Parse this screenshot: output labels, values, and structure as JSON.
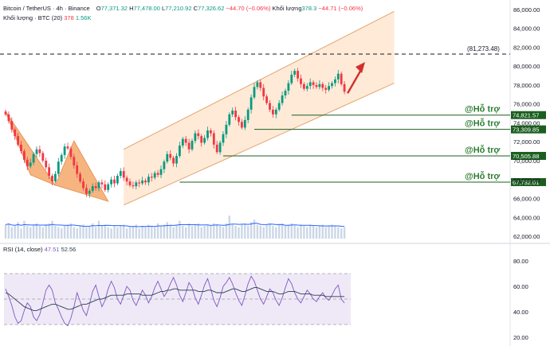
{
  "header": {
    "symbol": "Bitcoin / TetherUS · 4h · Binance",
    "open_label": "O",
    "open_value": "77,371.32",
    "high_label": "H",
    "high_value": "77,478.00",
    "low_label": "L",
    "low_value": "77,210.92",
    "close_label": "C",
    "close_value": "77,326.62",
    "change": "−44.70 (−0.06%)",
    "volume_label": "Khối lượng",
    "volume_value": "378.3",
    "volume_change": "−44.71 (−0.06%)",
    "volume_indicator_label": "Khối lượng · BTC (20)",
    "volume_indicator_value1": "378",
    "volume_indicator_value2": "1.56K"
  },
  "rsi_header": {
    "label": "RSI (14, close)",
    "value1": "47.51",
    "value2": "52.56"
  },
  "colors": {
    "up": "#089981",
    "down": "#f23645",
    "channel_fill": "#fde3c9",
    "channel_line": "#e2a46c",
    "pattern_fill": "#f5a86a",
    "support_line": "#1b5e20",
    "support_text": "#2e7d32",
    "rsi_band": "#ede7f6",
    "rsi_line": "#7e57c2",
    "rsi_ma": "#2c3e50",
    "arrow": "#d32f2f"
  },
  "chart_data": {
    "type": "candlestick",
    "price_axis": {
      "ylim": [
        61500,
        87000
      ],
      "ticks": [
        "86,000.00",
        "84,000.00",
        "82,000.00",
        "80,000.00",
        "78,000.00",
        "76,000.00",
        "74,000.00",
        "72,000.00",
        "70,000.00",
        "68,000.00",
        "66,000.00",
        "64,000.00",
        "62,000.00"
      ],
      "tick_values": [
        86000,
        84000,
        82000,
        80000,
        78000,
        76000,
        74000,
        72000,
        70000,
        68000,
        66000,
        64000,
        62000
      ]
    },
    "target_level": {
      "value": 81273.48,
      "label": "(81,273.48)"
    },
    "supports": [
      {
        "value": 74821.57,
        "label": "74,821.57",
        "text": "@Hỗ trợ",
        "from_bar": 92
      },
      {
        "value": 73309.85,
        "label": "73,309.85",
        "text": "@Hỗ trợ",
        "from_bar": 80
      },
      {
        "value": 70505.88,
        "label": "70,505.88",
        "text": "@Hỗ trợ",
        "from_bar": 70
      },
      {
        "value": 67732.01,
        "label": "67,732.01",
        "text": "@Hỗ trợ",
        "from_bar": 56
      }
    ],
    "channel": {
      "lower": [
        [
          38,
          65300
        ],
        [
          125,
          78200
        ]
      ],
      "upper": [
        [
          38,
          71200
        ],
        [
          125,
          85800
        ]
      ]
    },
    "harmonic_pattern": [
      [
        0,
        75200
      ],
      [
        8,
        68500
      ],
      [
        16,
        67400
      ],
      [
        22,
        72100
      ],
      [
        33,
        65700
      ]
    ],
    "close": [
      74900,
      74200,
      73300,
      72600,
      71700,
      71000,
      70100,
      69400,
      69800,
      70700,
      71200,
      70800,
      70000,
      69300,
      68400,
      67800,
      68600,
      69900,
      70600,
      71500,
      71300,
      70400,
      69500,
      68600,
      67800,
      67100,
      66500,
      66800,
      67300,
      67100,
      67700,
      67500,
      66900,
      67500,
      68000,
      67600,
      68400,
      68900,
      68200,
      67800,
      67400,
      67300,
      67700,
      67600,
      67900,
      67700,
      68300,
      68200,
      68700,
      68500,
      69100,
      69900,
      70700,
      70300,
      69700,
      70500,
      71600,
      72300,
      71900,
      71200,
      72100,
      72900,
      72600,
      71900,
      72400,
      73200,
      72900,
      71700,
      70900,
      71900,
      72800,
      73800,
      74900,
      75300,
      74600,
      74100,
      73500,
      74300,
      75400,
      76700,
      77800,
      78300,
      77700,
      76800,
      76100,
      75400,
      74900,
      75400,
      76100,
      76900,
      77400,
      78200,
      79100,
      79500,
      78700,
      78100,
      77600,
      77900,
      78300,
      78000,
      77800,
      78100,
      77700,
      77500,
      77900,
      78200,
      78600,
      79200,
      78100,
      77300
    ],
    "volume": [
      0.55,
      0.6,
      0.45,
      0.5,
      0.65,
      0.4,
      0.7,
      0.5,
      0.45,
      0.55,
      0.6,
      0.5,
      0.45,
      0.55,
      0.6,
      0.7,
      0.5,
      0.45,
      0.4,
      0.5,
      0.55,
      0.6,
      0.45,
      0.4,
      0.5,
      0.55,
      0.45,
      0.5,
      0.6,
      0.45,
      0.7,
      0.5,
      0.55,
      0.45,
      0.4,
      0.5,
      0.45,
      0.5,
      0.55,
      0.4,
      0.45,
      0.5,
      0.55,
      0.4,
      0.5,
      0.45,
      0.55,
      0.5,
      0.45,
      0.6,
      0.5,
      0.55,
      0.65,
      0.5,
      0.45,
      0.55,
      0.7,
      0.5,
      0.45,
      0.6,
      0.5,
      0.55,
      0.6,
      0.45,
      0.5,
      0.55,
      0.5,
      0.6,
      0.55,
      0.5,
      0.45,
      0.6,
      0.9,
      0.55,
      0.5,
      0.45,
      0.55,
      0.6,
      0.5,
      0.65,
      0.75,
      0.55,
      0.5,
      0.45,
      0.55,
      0.6,
      0.5,
      0.45,
      0.55,
      0.6,
      0.5,
      0.55,
      0.6,
      0.5,
      0.45,
      0.55,
      0.5,
      0.45,
      0.55,
      0.5,
      0.45,
      0.5,
      0.55,
      0.45,
      0.5,
      0.55,
      0.5,
      0.45,
      0.4,
      0.45
    ],
    "rsi_axis": {
      "ylim": [
        15,
        85
      ],
      "ticks": [
        "80.00",
        "60.00",
        "40.00",
        "20.00"
      ],
      "tick_values": [
        80,
        60,
        40,
        20
      ],
      "band": [
        30,
        70
      ],
      "mid": 50
    },
    "rsi": [
      58,
      52,
      45,
      36,
      31,
      33,
      41,
      47,
      44,
      36,
      33,
      38,
      47,
      57,
      61,
      57,
      47,
      42,
      36,
      31,
      29,
      35,
      44,
      55,
      48,
      41,
      37,
      46,
      56,
      61,
      52,
      44,
      49,
      58,
      64,
      59,
      50,
      46,
      53,
      60,
      57,
      49,
      45,
      51,
      57,
      53,
      47,
      52,
      59,
      64,
      58,
      52,
      56,
      62,
      67,
      61,
      53,
      48,
      55,
      63,
      59,
      51,
      46,
      53,
      61,
      66,
      58,
      49,
      44,
      51,
      60,
      63,
      67,
      62,
      55,
      49,
      45,
      53,
      62,
      68,
      64,
      57,
      50,
      46,
      52,
      58,
      55,
      49,
      45,
      51,
      59,
      66,
      62,
      55,
      50,
      47,
      52,
      57,
      54,
      50,
      48,
      52,
      55,
      51,
      49,
      53,
      58,
      61,
      50,
      47
    ],
    "rsi_ma": [
      55,
      54,
      52,
      50,
      48,
      46,
      44,
      43,
      42,
      41,
      41,
      42,
      43,
      44,
      45,
      46,
      46,
      45,
      44,
      43,
      42,
      42,
      43,
      44,
      45,
      46,
      46,
      47,
      48,
      49,
      50,
      50,
      51,
      52,
      53,
      53,
      53,
      53,
      53,
      54,
      54,
      54,
      54,
      54,
      53,
      53,
      53,
      53,
      54,
      55,
      56,
      56,
      57,
      57,
      58,
      58,
      57,
      57,
      57,
      57,
      57,
      57,
      56,
      56,
      56,
      57,
      57,
      56,
      55,
      55,
      55,
      56,
      57,
      58,
      58,
      57,
      56,
      56,
      57,
      58,
      59,
      59,
      58,
      57,
      56,
      56,
      56,
      55,
      54,
      54,
      55,
      56,
      56,
      56,
      55,
      54,
      54,
      54,
      54,
      53,
      53,
      53,
      53,
      52,
      52,
      52,
      52,
      52,
      52,
      52
    ]
  }
}
